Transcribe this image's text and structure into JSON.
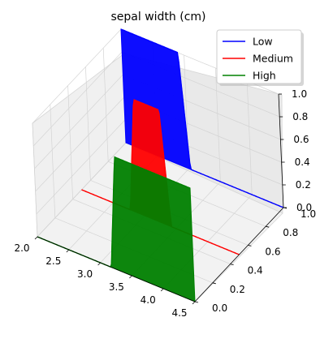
{
  "chart_data": {
    "type": "area",
    "projection": "3d",
    "title": "sepal width (cm)",
    "xlim": [
      2.0,
      4.5
    ],
    "ylim": [
      0.0,
      1.0
    ],
    "zlim": [
      0.0,
      1.0
    ],
    "xticks": [
      "2.0",
      "2.5",
      "3.0",
      "3.5",
      "4.0",
      "4.5"
    ],
    "yticks": [
      "0.0",
      "0.2",
      "0.4",
      "0.6",
      "0.8",
      "1.0"
    ],
    "zticks": [
      "0.0",
      "0.2",
      "0.4",
      "0.6",
      "0.8",
      "1.0"
    ],
    "legend_position": "top-right",
    "series": [
      {
        "name": "Low",
        "color": "#0000ff",
        "y_plane": 1.0,
        "x_range": [
          2.0,
          2.9
        ],
        "membership": "shoulder-left"
      },
      {
        "name": "Medium",
        "color": "#ff0000",
        "y_plane": 0.5,
        "x_range": [
          2.9,
          3.3
        ],
        "membership": "trapezoid"
      },
      {
        "name": "High",
        "color": "#008000",
        "y_plane": 0.0,
        "x_range": [
          3.3,
          4.5
        ],
        "membership": "shoulder-right"
      }
    ]
  }
}
